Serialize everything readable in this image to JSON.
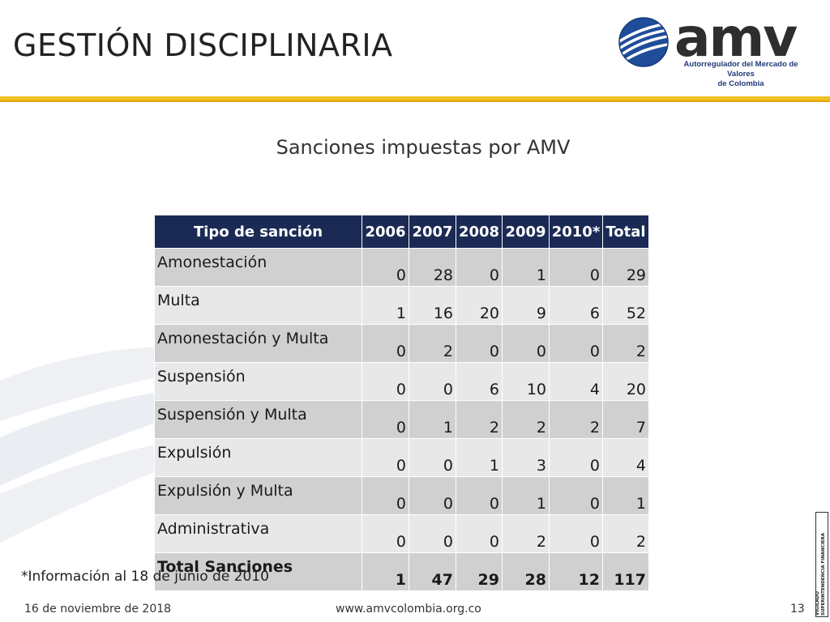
{
  "slide": {
    "title": "GESTIÓN DISCIPLINARIA",
    "subtitle": "Sanciones impuestas por AMV",
    "note": "*Información al 18 de junio de 2010",
    "footer_date": "16 de noviembre de 2018",
    "footer_url": "www.amvcolombia.org.co",
    "page_number": "13"
  },
  "logo": {
    "word": "amv",
    "tagline_1": "Autorregulador del Mercado de Valores",
    "tagline_2": "de Colombia"
  },
  "vigilado": {
    "line1": "VIGILADO",
    "line2": "SUPERINTENDENCIA FINANCIERA",
    "line3": "DE COLOMBIA"
  },
  "colors": {
    "header_bg": "#1b2a55",
    "rule": "#f0c020",
    "row_dark": "#d0d0d0",
    "row_light": "#e8e8e8"
  },
  "table": {
    "headers": [
      "Tipo de sanción",
      "2006",
      "2007",
      "2008",
      "2009",
      "2010*",
      "Total"
    ],
    "rows": [
      [
        "Amonestación",
        "0",
        "28",
        "0",
        "1",
        "0",
        "29"
      ],
      [
        "Multa",
        "1",
        "16",
        "20",
        "9",
        "6",
        "52"
      ],
      [
        "Amonestación y Multa",
        "0",
        "2",
        "0",
        "0",
        "0",
        "2"
      ],
      [
        "Suspensión",
        "0",
        "0",
        "6",
        "10",
        "4",
        "20"
      ],
      [
        "Suspensión y Multa",
        "0",
        "1",
        "2",
        "2",
        "2",
        "7"
      ],
      [
        "Expulsión",
        "0",
        "0",
        "1",
        "3",
        "0",
        "4"
      ],
      [
        "Expulsión y Multa",
        "0",
        "0",
        "0",
        "1",
        "0",
        "1"
      ],
      [
        "Administrativa",
        "0",
        "0",
        "0",
        "2",
        "0",
        "2"
      ]
    ],
    "total_row": [
      "Total Sanciones",
      "1",
      "47",
      "29",
      "28",
      "12",
      "117"
    ]
  }
}
